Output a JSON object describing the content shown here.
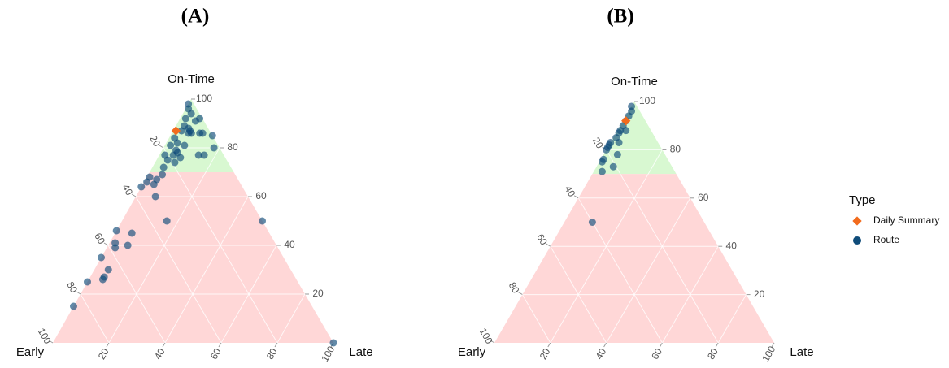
{
  "chart_data": [
    {
      "type": "ternary",
      "title": "(A)",
      "axes": [
        {
          "label": "Early",
          "ticks": [
            20,
            40,
            60,
            80,
            100
          ]
        },
        {
          "label": "On-Time",
          "ticks": [
            20,
            40,
            60,
            80,
            100
          ]
        },
        {
          "label": "Late",
          "ticks": [
            20,
            40,
            60,
            80,
            100
          ]
        }
      ],
      "regions": [
        {
          "axis": 1,
          "from": 70,
          "to": 100,
          "color": "#d4f7cc"
        },
        {
          "axis": 1,
          "from": 0,
          "to": 70,
          "color": "#ffd3d3"
        }
      ],
      "grid": true,
      "series": [
        {
          "name": "Daily Summary",
          "color": "#f26b1d",
          "marker": "diamond",
          "values": [
            [
              12,
              87,
              1
            ]
          ]
        },
        {
          "name": "Route",
          "color": "#0f4c7a",
          "marker": "circle",
          "values": [
            [
              2,
              98,
              0
            ],
            [
              3,
              96,
              1
            ],
            [
              3,
              94,
              3
            ],
            [
              6,
              92,
              2
            ],
            [
              3,
              91,
              6
            ],
            [
              8,
              89,
              3
            ],
            [
              7,
              88,
              5
            ],
            [
              1,
              92,
              7
            ],
            [
              10,
              87,
              3
            ],
            [
              8,
              86,
              6
            ],
            [
              14,
              84,
              2
            ],
            [
              14,
              82,
              4
            ],
            [
              7,
              86,
              7
            ],
            [
              17,
              81,
              2
            ],
            [
              16,
              79,
              5
            ],
            [
              21,
              77,
              2
            ],
            [
              18,
              77,
              5
            ],
            [
              16,
              78,
              6
            ],
            [
              12,
              81,
              7
            ],
            [
              4,
              86,
              10
            ],
            [
              0,
              85,
              15
            ],
            [
              3,
              86,
              11
            ],
            [
              7,
              87,
              6
            ],
            [
              16,
              76,
              8
            ],
            [
              21,
              75,
              4
            ],
            [
              24,
              72,
              4
            ],
            [
              9,
              77,
              14
            ],
            [
              7,
              77,
              16
            ],
            [
              2,
              80,
              18
            ],
            [
              19,
              74,
              7
            ],
            [
              31,
              68,
              1
            ],
            [
              26,
              69,
              5
            ],
            [
              33,
              66,
              1
            ],
            [
              36,
              64,
              0
            ],
            [
              31,
              65,
              4
            ],
            [
              29,
              67,
              4
            ],
            [
              33,
              60,
              7
            ],
            [
              34,
              50,
              16
            ],
            [
              0,
              50,
              50
            ],
            [
              54,
              46,
              0
            ],
            [
              49,
              45,
              6
            ],
            [
              53,
              40,
              7
            ],
            [
              58,
              39,
              3
            ],
            [
              57,
              41,
              2
            ],
            [
              65,
              35,
              0
            ],
            [
              65,
              30,
              5
            ],
            [
              69,
              26,
              5
            ],
            [
              68,
              27,
              5
            ],
            [
              75,
              25,
              0
            ],
            [
              85,
              15,
              0
            ],
            [
              0,
              0,
              100
            ]
          ]
        }
      ]
    },
    {
      "type": "ternary",
      "title": "(B)",
      "axes": [
        {
          "label": "Early",
          "ticks": [
            20,
            40,
            60,
            80,
            100
          ]
        },
        {
          "label": "On-Time",
          "ticks": [
            20,
            40,
            60,
            80,
            100
          ]
        },
        {
          "label": "Late",
          "ticks": [
            20,
            40,
            60,
            80,
            100
          ]
        }
      ],
      "regions": [
        {
          "axis": 1,
          "from": 70,
          "to": 100,
          "color": "#d4f7cc"
        },
        {
          "axis": 1,
          "from": 0,
          "to": 70,
          "color": "#ffd3d3"
        }
      ],
      "grid": true,
      "legend": {
        "title": "Type",
        "position": "right"
      },
      "series": [
        {
          "name": "Daily Summary",
          "color": "#f26b1d",
          "marker": "diamond",
          "values": [
            [
              7,
              92,
              1
            ]
          ]
        },
        {
          "name": "Route",
          "color": "#0f4c7a",
          "marker": "circle",
          "values": [
            [
              2,
              98,
              0
            ],
            [
              3,
              96,
              1
            ],
            [
              5,
              94,
              1
            ],
            [
              7,
              92,
              1
            ],
            [
              9,
              90,
              1
            ],
            [
              11,
              88,
              1
            ],
            [
              12,
              87,
              1
            ],
            [
              9,
              88,
              3
            ],
            [
              14,
              85,
              1
            ],
            [
              17,
              83,
              0
            ],
            [
              19,
              81,
              0
            ],
            [
              20,
              80,
              0
            ],
            [
              18,
              82,
              0
            ],
            [
              14,
              83,
              3
            ],
            [
              23,
              76,
              1
            ],
            [
              24,
              75,
              1
            ],
            [
              21,
              73,
              6
            ],
            [
              26,
              71,
              3
            ],
            [
              17,
              78,
              5
            ],
            [
              40,
              50,
              10
            ]
          ]
        }
      ]
    }
  ]
}
